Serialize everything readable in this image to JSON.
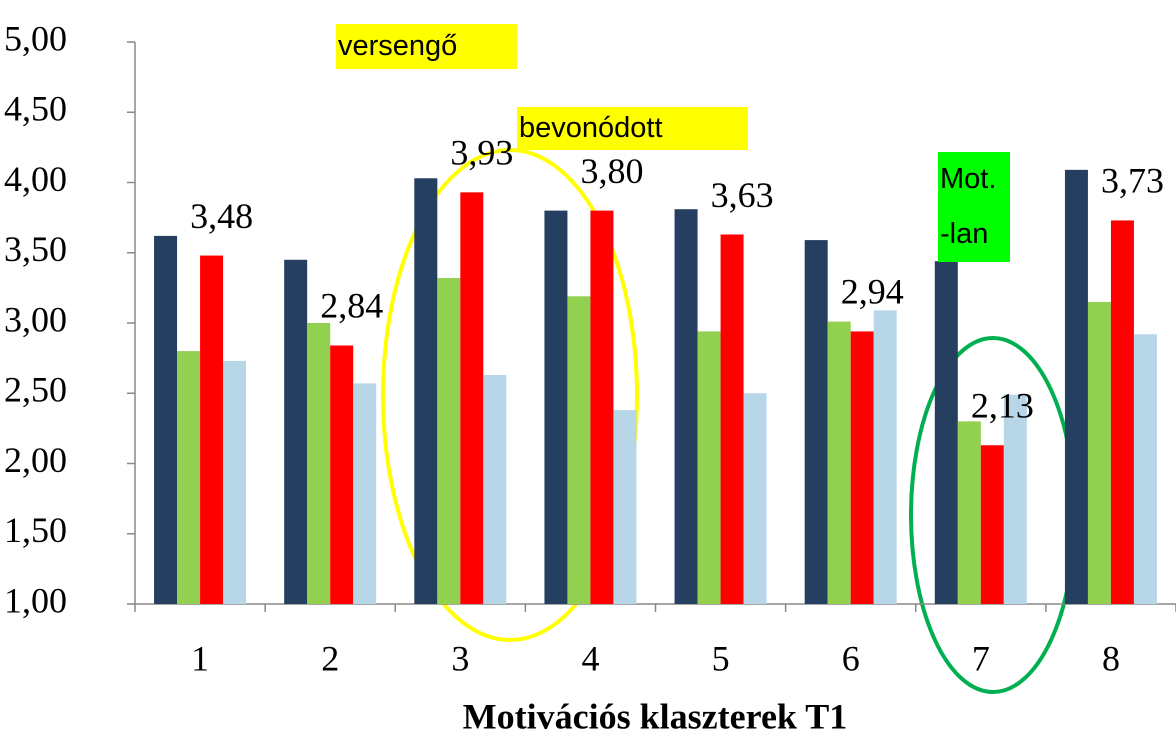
{
  "chart_data": {
    "type": "bar",
    "xlabel": "Motivációs klaszterek T1",
    "categories": [
      "1",
      "2",
      "3",
      "4",
      "5",
      "6",
      "7",
      "8"
    ],
    "series": [
      {
        "color": "#243f60",
        "values": [
          3.62,
          3.45,
          4.03,
          3.8,
          3.81,
          3.59,
          3.44,
          4.09
        ]
      },
      {
        "color": "#92d050",
        "values": [
          2.8,
          3.0,
          3.32,
          3.19,
          2.94,
          3.01,
          2.3,
          3.15
        ]
      },
      {
        "color": "#ff0000",
        "values": [
          3.48,
          2.84,
          3.93,
          3.8,
          3.63,
          2.94,
          2.13,
          3.73
        ],
        "value_labels": [
          "3,48",
          "2,84",
          "3,93",
          "3,80",
          "3,63",
          "2,94",
          "2,13",
          "3,73"
        ]
      },
      {
        "color": "#b7d7e8",
        "values": [
          2.73,
          2.57,
          2.63,
          2.38,
          2.5,
          3.09,
          2.49,
          2.92
        ]
      }
    ],
    "ylim": [
      1,
      5
    ],
    "yticks": [
      {
        "value": 1,
        "label": "1,00"
      },
      {
        "value": 1.5,
        "label": "1,50"
      },
      {
        "value": 2,
        "label": "2,00"
      },
      {
        "value": 2.5,
        "label": "2,50"
      },
      {
        "value": 3,
        "label": "3,00"
      },
      {
        "value": 3.5,
        "label": "3,50"
      },
      {
        "value": 4,
        "label": "4,00"
      },
      {
        "value": 4.5,
        "label": "4,50"
      },
      {
        "value": 5,
        "label": "5,00"
      }
    ],
    "grid": false,
    "annotations": [
      {
        "lines": [
          "versengő"
        ],
        "color": "#ffff00"
      },
      {
        "lines": [
          "bevonódott"
        ],
        "color": "#ffff00"
      },
      {
        "lines": [
          "Mot.",
          "-lan"
        ],
        "color": "#00ff00"
      }
    ]
  }
}
